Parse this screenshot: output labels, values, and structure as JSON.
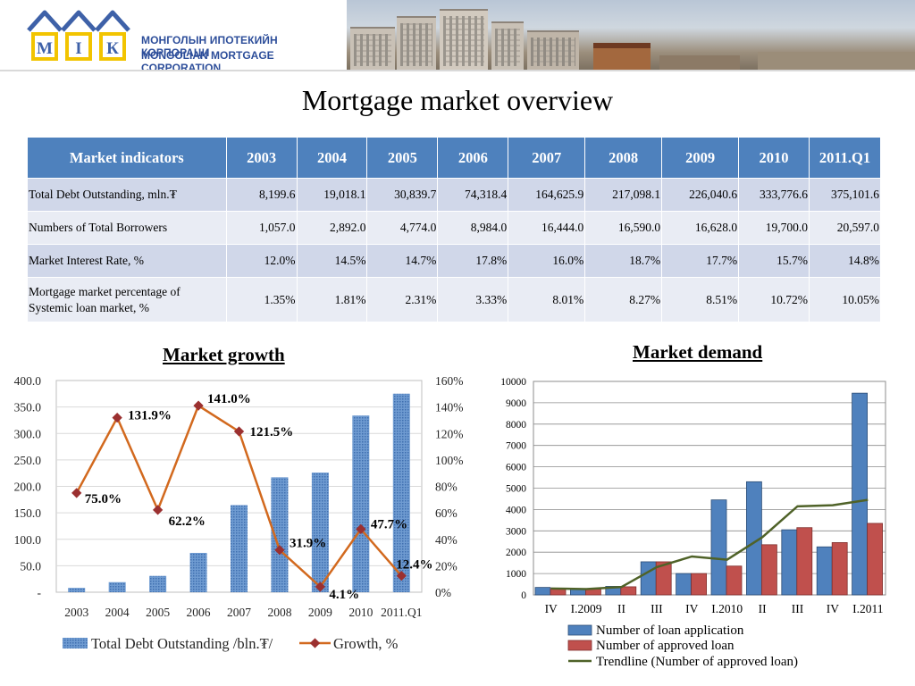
{
  "header": {
    "logo_letters": [
      "М",
      "І",
      "К"
    ],
    "org_name_mn": "МОНГОЛЫН ИПОТЕКИЙН КОРПОРАЦИ",
    "org_name_en": "MONGOLIAN MORTGAGE CORPORATION"
  },
  "page_title": "Mortgage market overview",
  "table": {
    "headers": [
      "Market indicators",
      "2003",
      "2004",
      "2005",
      "2006",
      "2007",
      "2008",
      "2009",
      "2010",
      "2011.Q1"
    ],
    "rows": [
      {
        "label": "Total Debt Outstanding, mln.₮",
        "values": [
          "8,199.6",
          "19,018.1",
          "30,839.7",
          "74,318.4",
          "164,625.9",
          "217,098.1",
          "226,040.6",
          "333,776.6",
          "375,101.6"
        ]
      },
      {
        "label": "Numbers of  Total Borrowers",
        "values": [
          "1,057.0",
          "2,892.0",
          "4,774.0",
          "8,984.0",
          "16,444.0",
          "16,590.0",
          "16,628.0",
          "19,700.0",
          "20,597.0"
        ]
      },
      {
        "label": "Market Interest Rate, %",
        "values": [
          "12.0%",
          "14.5%",
          "14.7%",
          "17.8%",
          "16.0%",
          "18.7%",
          "17.7%",
          "15.7%",
          "14.8%"
        ]
      },
      {
        "label": "Mortgage market percentage of Systemic loan market, %",
        "values": [
          "1.35%",
          "1.81%",
          "2.31%",
          "3.33%",
          "8.01%",
          "8.27%",
          "8.51%",
          "10.72%",
          "10.05%"
        ]
      }
    ]
  },
  "colors": {
    "table_header": "#4e81bd",
    "bar_blue": "#4f81bd",
    "bar_red": "#c0504d",
    "growth_line": "#d2691e",
    "growth_marker": "#9b3030",
    "trendline": "#4f6228"
  },
  "chart_data": [
    {
      "type": "bar",
      "title": "Market growth",
      "categories": [
        "2003",
        "2004",
        "2005",
        "2006",
        "2007",
        "2008",
        "2009",
        "2010",
        "2011.Q1"
      ],
      "series": [
        {
          "name": "Total Debt Outstanding /bln.₮/",
          "type": "bar",
          "axis": "left",
          "values": [
            8.2,
            19.0,
            30.8,
            74.3,
            164.6,
            217.1,
            226.0,
            333.8,
            375.1
          ]
        },
        {
          "name": "Growth, %",
          "type": "line",
          "axis": "right",
          "values": [
            75.0,
            131.9,
            62.2,
            141.0,
            121.5,
            31.9,
            4.1,
            47.7,
            12.4
          ]
        }
      ],
      "data_labels": [
        "75.0%",
        "131.9%",
        "62.2%",
        "141.0%",
        "121.5%",
        "31.9%",
        "4.1%",
        "47.7%",
        "12.4%"
      ],
      "ylim": [
        0,
        400
      ],
      "y_ticks": [
        "-",
        "50.0",
        "100.0",
        "150.0",
        "200.0",
        "250.0",
        "300.0",
        "350.0",
        "400.0"
      ],
      "y2lim": [
        0,
        160
      ],
      "y2_ticks": [
        "0%",
        "20%",
        "40%",
        "60%",
        "80%",
        "100%",
        "120%",
        "140%",
        "160%"
      ],
      "grid": true,
      "legend_position": "bottom"
    },
    {
      "type": "bar",
      "title": "Market demand",
      "categories": [
        "IV",
        "I.2009",
        "II",
        "III",
        "IV",
        "I.2010",
        "II",
        "III",
        "IV",
        "I.2011"
      ],
      "series": [
        {
          "name": "Number of loan application",
          "type": "bar",
          "values": [
            350,
            280,
            400,
            1550,
            1000,
            4450,
            5300,
            3050,
            2250,
            9450
          ]
        },
        {
          "name": "Number of approved loan",
          "type": "bar",
          "values": [
            300,
            270,
            380,
            1550,
            1000,
            1350,
            2350,
            3150,
            2450,
            3350
          ]
        },
        {
          "name": "Trendline (Number of approved loan)",
          "type": "line",
          "values": [
            300,
            270,
            370,
            1300,
            1800,
            1650,
            2700,
            4150,
            4200,
            4450
          ]
        }
      ],
      "ylim": [
        0,
        10000
      ],
      "y_ticks": [
        "0",
        "1000",
        "2000",
        "3000",
        "4000",
        "5000",
        "6000",
        "7000",
        "8000",
        "9000",
        "10000"
      ],
      "grid": true,
      "legend_position": "bottom"
    }
  ]
}
